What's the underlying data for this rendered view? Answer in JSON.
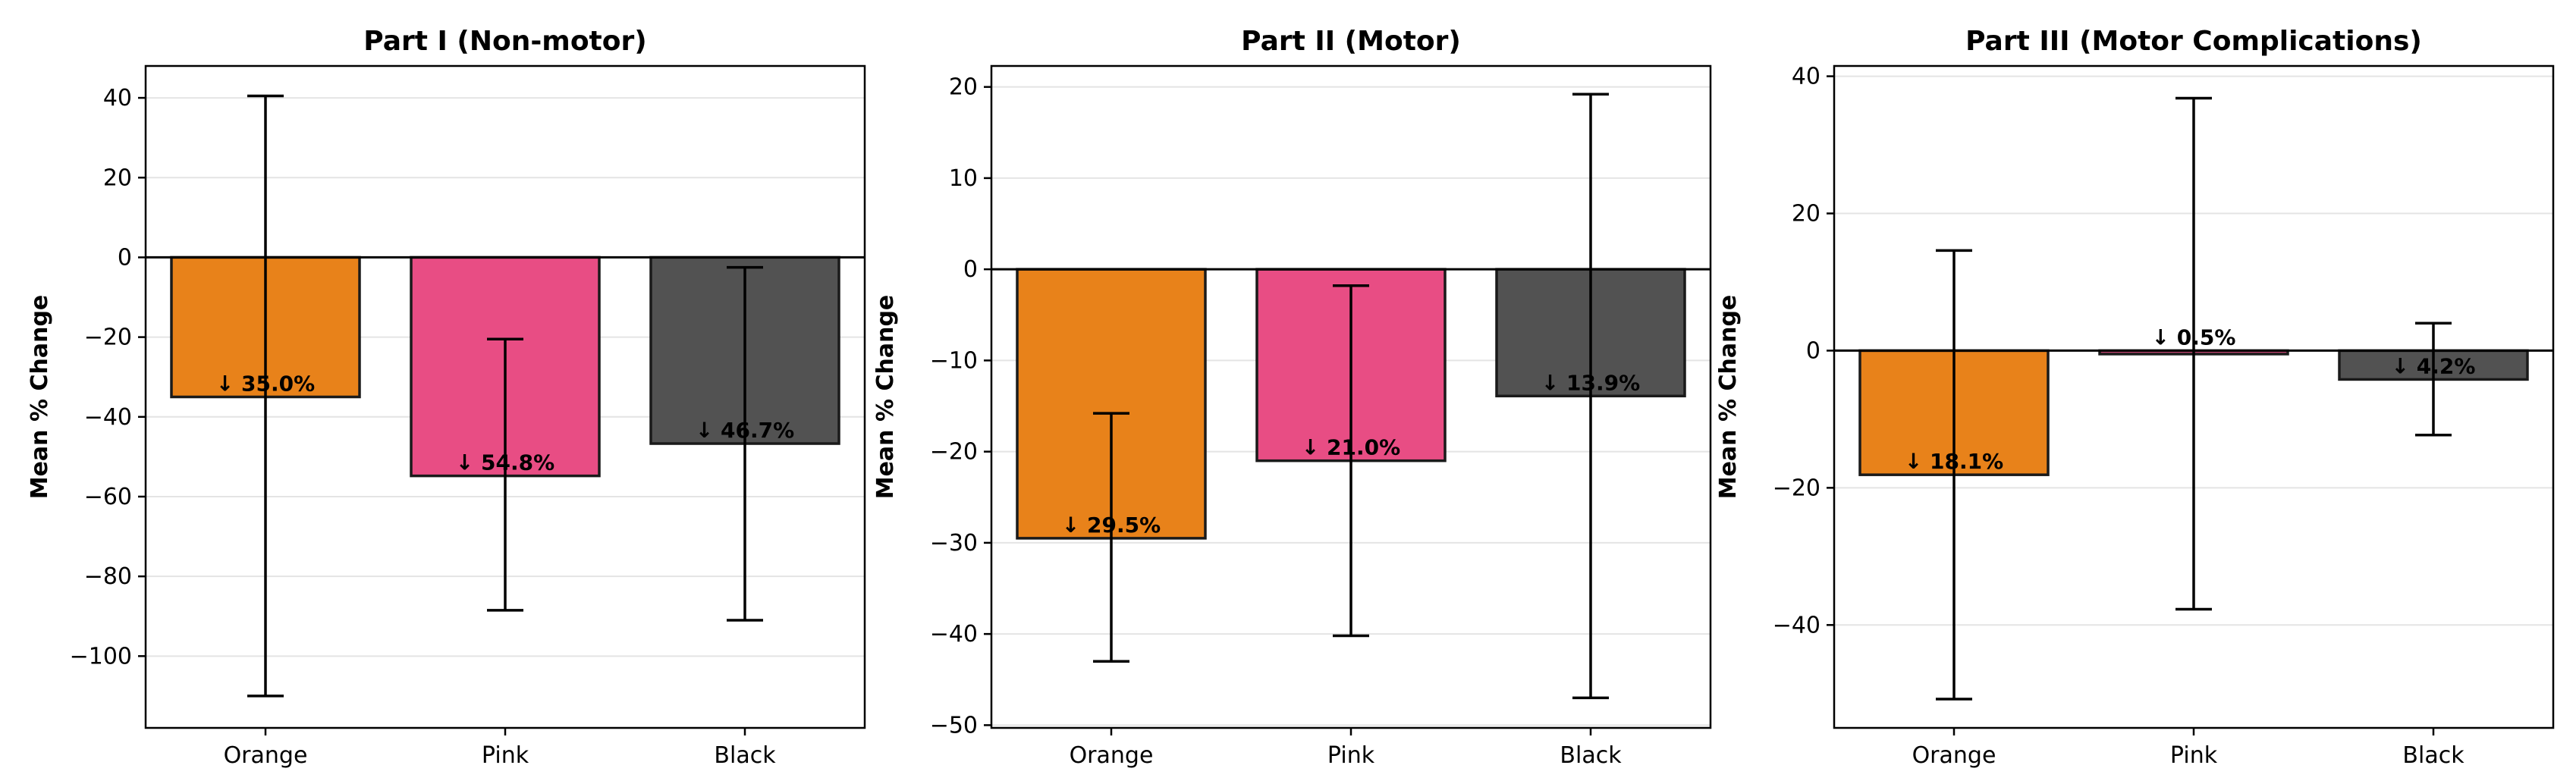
{
  "chart_data": [
    {
      "type": "bar",
      "title": "Part I (Non-motor)",
      "xlabel": "",
      "ylabel": "Mean % Change",
      "categories": [
        "Orange",
        "Pink",
        "Black"
      ],
      "values": [
        -35.0,
        -54.8,
        -46.7
      ],
      "error_low": [
        -110.0,
        -88.5,
        -91.0
      ],
      "error_high": [
        40.5,
        -20.5,
        -2.5
      ],
      "bar_labels": [
        "↓ 35.0%",
        "↓ 54.8%",
        "↓ 46.7%"
      ],
      "colors": [
        "#e8821a",
        "#e84d84",
        "#525252"
      ],
      "ylim": [
        -118,
        48
      ],
      "yticks": [
        40,
        20,
        0,
        -20,
        -40,
        -60,
        -80,
        -100
      ],
      "ytick_labels": [
        "40",
        "20",
        "0",
        "−20",
        "−40",
        "−60",
        "−80",
        "−100"
      ],
      "grid": "y",
      "zero_line": true
    },
    {
      "type": "bar",
      "title": "Part II (Motor)",
      "xlabel": "",
      "ylabel": "Mean % Change",
      "categories": [
        "Orange",
        "Pink",
        "Black"
      ],
      "values": [
        -29.5,
        -21.0,
        -13.9
      ],
      "error_low": [
        -43.0,
        -40.2,
        -47.0
      ],
      "error_high": [
        -15.8,
        -1.8,
        19.2
      ],
      "bar_labels": [
        "↓ 29.5%",
        "↓ 21.0%",
        "↓ 13.9%"
      ],
      "colors": [
        "#e8821a",
        "#e84d84",
        "#525252"
      ],
      "ylim": [
        -50.3,
        22.3
      ],
      "yticks": [
        20,
        10,
        0,
        -10,
        -20,
        -30,
        -40,
        -50
      ],
      "ytick_labels": [
        "20",
        "10",
        "0",
        "−10",
        "−20",
        "−30",
        "−40",
        "−50"
      ],
      "grid": "y",
      "zero_line": true
    },
    {
      "type": "bar",
      "title": "Part III (Motor Complications)",
      "xlabel": "",
      "ylabel": "Mean % Change",
      "categories": [
        "Orange",
        "Pink",
        "Black"
      ],
      "values": [
        -18.1,
        -0.5,
        -4.2
      ],
      "error_low": [
        -50.8,
        -37.7,
        -12.3
      ],
      "error_high": [
        14.6,
        36.8,
        4.0
      ],
      "bar_labels": [
        "↓ 18.1%",
        "↓ 0.5%",
        "↓ 4.2%"
      ],
      "colors": [
        "#e8821a",
        "#e84d84",
        "#525252"
      ],
      "ylim": [
        -55,
        41.5
      ],
      "yticks": [
        40,
        20,
        0,
        -20,
        -40
      ],
      "ytick_labels": [
        "40",
        "20",
        "0",
        "−20",
        "−40"
      ],
      "grid": "y",
      "zero_line": true
    }
  ]
}
